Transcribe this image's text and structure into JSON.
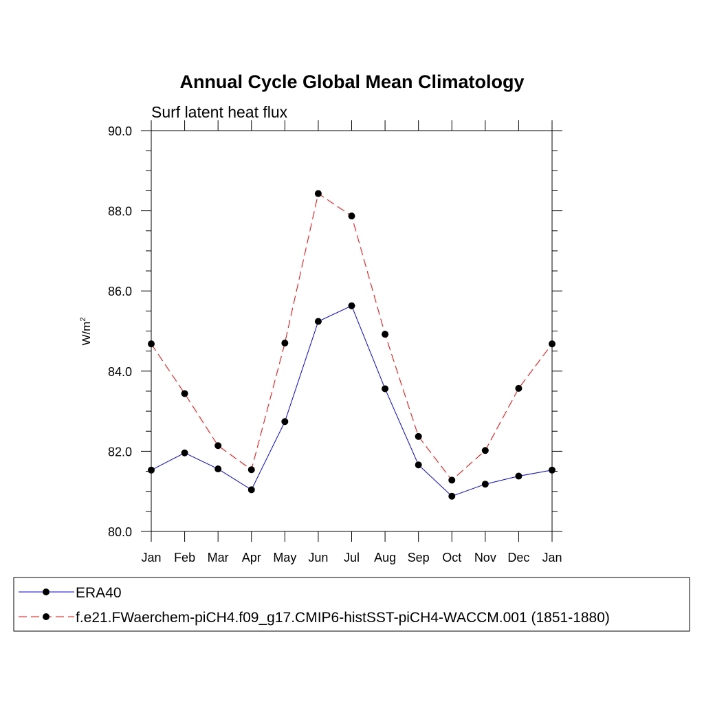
{
  "chart_data": {
    "type": "line",
    "title": "Annual Cycle Global Mean Climatology",
    "subtitle": "Surf latent heat flux",
    "xlabel": "",
    "ylabel": "W/m",
    "ylabel_superscript": "2",
    "ylim": [
      80.0,
      90.0
    ],
    "yticks": [
      "80.0",
      "82.0",
      "84.0",
      "86.0",
      "88.0",
      "90.0"
    ],
    "categories": [
      "Jan",
      "Feb",
      "Mar",
      "Apr",
      "May",
      "Jun",
      "Jul",
      "Aug",
      "Sep",
      "Oct",
      "Nov",
      "Dec",
      "Jan"
    ],
    "grid": false,
    "legend_position": "bottom",
    "series": [
      {
        "name": "ERA40",
        "color": "#0000ff",
        "dash": "solid",
        "values": [
          81.53,
          81.96,
          81.56,
          81.04,
          82.74,
          85.24,
          85.63,
          83.56,
          81.66,
          80.88,
          81.18,
          81.38,
          81.53
        ]
      },
      {
        "name": "f.e21.FWaerchem-piCH4.f09_g17.CMIP6-histSST-piCH4-WACCM.001 (1851-1880)",
        "color": "#ff0000",
        "dash": "dashed",
        "values": [
          84.68,
          83.44,
          82.14,
          81.54,
          84.7,
          88.43,
          87.87,
          84.92,
          82.37,
          81.28,
          82.02,
          83.57,
          84.68
        ]
      }
    ]
  }
}
